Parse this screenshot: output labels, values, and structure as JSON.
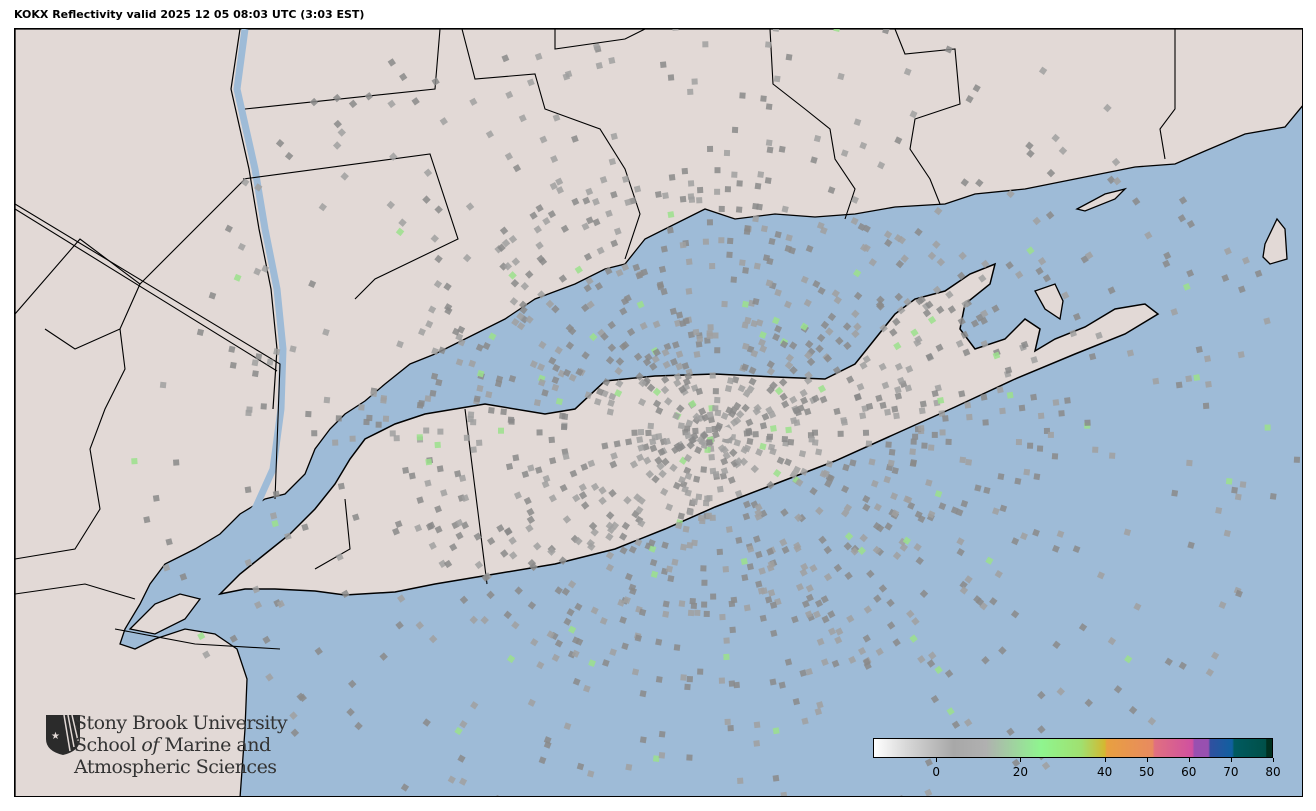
{
  "title": "KOKX Reflectivity valid 2025 12 05 08:03 UTC (3:03 EST)",
  "map": {
    "colors": {
      "water": "#9ebbd7",
      "land": "#e2d9d6",
      "borders": "#000000",
      "echo": "#8a8a8a"
    }
  },
  "logo": {
    "line1": "Stony Brook University",
    "line2_a": "School ",
    "line2_b": "of",
    "line2_c": " Marine and",
    "line3": "Atmospheric Sciences"
  },
  "colorbar": {
    "min": -15,
    "max": 80,
    "ticks": [
      {
        "value": 0,
        "label": "0"
      },
      {
        "value": 20,
        "label": "20"
      },
      {
        "value": 40,
        "label": "40"
      },
      {
        "value": 50,
        "label": "50"
      },
      {
        "value": 60,
        "label": "60"
      },
      {
        "value": 70,
        "label": "70"
      },
      {
        "value": 80,
        "label": "80"
      }
    ]
  }
}
